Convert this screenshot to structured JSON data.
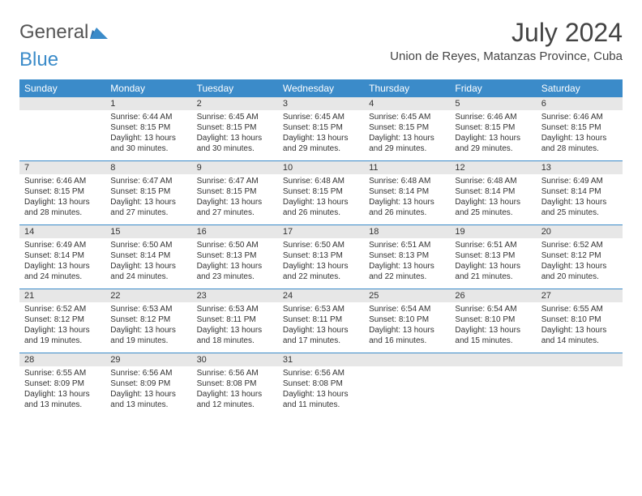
{
  "logo": {
    "text1": "General",
    "text2": "Blue",
    "color1": "#555555",
    "color2": "#3b8bc9"
  },
  "title": "July 2024",
  "subtitle": "Union de Reyes, Matanzas Province, Cuba",
  "header_bg": "#3b8bc9",
  "header_fg": "#ffffff",
  "daynum_bg": "#e7e7e7",
  "border_color": "#3b8bc9",
  "day_names": [
    "Sunday",
    "Monday",
    "Tuesday",
    "Wednesday",
    "Thursday",
    "Friday",
    "Saturday"
  ],
  "weeks": [
    {
      "nums": [
        "",
        "1",
        "2",
        "3",
        "4",
        "5",
        "6"
      ],
      "cells": [
        {
          "sunrise": "",
          "sunset": "",
          "daylight": ""
        },
        {
          "sunrise": "Sunrise: 6:44 AM",
          "sunset": "Sunset: 8:15 PM",
          "daylight": "Daylight: 13 hours and 30 minutes."
        },
        {
          "sunrise": "Sunrise: 6:45 AM",
          "sunset": "Sunset: 8:15 PM",
          "daylight": "Daylight: 13 hours and 30 minutes."
        },
        {
          "sunrise": "Sunrise: 6:45 AM",
          "sunset": "Sunset: 8:15 PM",
          "daylight": "Daylight: 13 hours and 29 minutes."
        },
        {
          "sunrise": "Sunrise: 6:45 AM",
          "sunset": "Sunset: 8:15 PM",
          "daylight": "Daylight: 13 hours and 29 minutes."
        },
        {
          "sunrise": "Sunrise: 6:46 AM",
          "sunset": "Sunset: 8:15 PM",
          "daylight": "Daylight: 13 hours and 29 minutes."
        },
        {
          "sunrise": "Sunrise: 6:46 AM",
          "sunset": "Sunset: 8:15 PM",
          "daylight": "Daylight: 13 hours and 28 minutes."
        }
      ]
    },
    {
      "nums": [
        "7",
        "8",
        "9",
        "10",
        "11",
        "12",
        "13"
      ],
      "cells": [
        {
          "sunrise": "Sunrise: 6:46 AM",
          "sunset": "Sunset: 8:15 PM",
          "daylight": "Daylight: 13 hours and 28 minutes."
        },
        {
          "sunrise": "Sunrise: 6:47 AM",
          "sunset": "Sunset: 8:15 PM",
          "daylight": "Daylight: 13 hours and 27 minutes."
        },
        {
          "sunrise": "Sunrise: 6:47 AM",
          "sunset": "Sunset: 8:15 PM",
          "daylight": "Daylight: 13 hours and 27 minutes."
        },
        {
          "sunrise": "Sunrise: 6:48 AM",
          "sunset": "Sunset: 8:15 PM",
          "daylight": "Daylight: 13 hours and 26 minutes."
        },
        {
          "sunrise": "Sunrise: 6:48 AM",
          "sunset": "Sunset: 8:14 PM",
          "daylight": "Daylight: 13 hours and 26 minutes."
        },
        {
          "sunrise": "Sunrise: 6:48 AM",
          "sunset": "Sunset: 8:14 PM",
          "daylight": "Daylight: 13 hours and 25 minutes."
        },
        {
          "sunrise": "Sunrise: 6:49 AM",
          "sunset": "Sunset: 8:14 PM",
          "daylight": "Daylight: 13 hours and 25 minutes."
        }
      ]
    },
    {
      "nums": [
        "14",
        "15",
        "16",
        "17",
        "18",
        "19",
        "20"
      ],
      "cells": [
        {
          "sunrise": "Sunrise: 6:49 AM",
          "sunset": "Sunset: 8:14 PM",
          "daylight": "Daylight: 13 hours and 24 minutes."
        },
        {
          "sunrise": "Sunrise: 6:50 AM",
          "sunset": "Sunset: 8:14 PM",
          "daylight": "Daylight: 13 hours and 24 minutes."
        },
        {
          "sunrise": "Sunrise: 6:50 AM",
          "sunset": "Sunset: 8:13 PM",
          "daylight": "Daylight: 13 hours and 23 minutes."
        },
        {
          "sunrise": "Sunrise: 6:50 AM",
          "sunset": "Sunset: 8:13 PM",
          "daylight": "Daylight: 13 hours and 22 minutes."
        },
        {
          "sunrise": "Sunrise: 6:51 AM",
          "sunset": "Sunset: 8:13 PM",
          "daylight": "Daylight: 13 hours and 22 minutes."
        },
        {
          "sunrise": "Sunrise: 6:51 AM",
          "sunset": "Sunset: 8:13 PM",
          "daylight": "Daylight: 13 hours and 21 minutes."
        },
        {
          "sunrise": "Sunrise: 6:52 AM",
          "sunset": "Sunset: 8:12 PM",
          "daylight": "Daylight: 13 hours and 20 minutes."
        }
      ]
    },
    {
      "nums": [
        "21",
        "22",
        "23",
        "24",
        "25",
        "26",
        "27"
      ],
      "cells": [
        {
          "sunrise": "Sunrise: 6:52 AM",
          "sunset": "Sunset: 8:12 PM",
          "daylight": "Daylight: 13 hours and 19 minutes."
        },
        {
          "sunrise": "Sunrise: 6:53 AM",
          "sunset": "Sunset: 8:12 PM",
          "daylight": "Daylight: 13 hours and 19 minutes."
        },
        {
          "sunrise": "Sunrise: 6:53 AM",
          "sunset": "Sunset: 8:11 PM",
          "daylight": "Daylight: 13 hours and 18 minutes."
        },
        {
          "sunrise": "Sunrise: 6:53 AM",
          "sunset": "Sunset: 8:11 PM",
          "daylight": "Daylight: 13 hours and 17 minutes."
        },
        {
          "sunrise": "Sunrise: 6:54 AM",
          "sunset": "Sunset: 8:10 PM",
          "daylight": "Daylight: 13 hours and 16 minutes."
        },
        {
          "sunrise": "Sunrise: 6:54 AM",
          "sunset": "Sunset: 8:10 PM",
          "daylight": "Daylight: 13 hours and 15 minutes."
        },
        {
          "sunrise": "Sunrise: 6:55 AM",
          "sunset": "Sunset: 8:10 PM",
          "daylight": "Daylight: 13 hours and 14 minutes."
        }
      ]
    },
    {
      "nums": [
        "28",
        "29",
        "30",
        "31",
        "",
        "",
        ""
      ],
      "cells": [
        {
          "sunrise": "Sunrise: 6:55 AM",
          "sunset": "Sunset: 8:09 PM",
          "daylight": "Daylight: 13 hours and 13 minutes."
        },
        {
          "sunrise": "Sunrise: 6:56 AM",
          "sunset": "Sunset: 8:09 PM",
          "daylight": "Daylight: 13 hours and 13 minutes."
        },
        {
          "sunrise": "Sunrise: 6:56 AM",
          "sunset": "Sunset: 8:08 PM",
          "daylight": "Daylight: 13 hours and 12 minutes."
        },
        {
          "sunrise": "Sunrise: 6:56 AM",
          "sunset": "Sunset: 8:08 PM",
          "daylight": "Daylight: 13 hours and 11 minutes."
        },
        {
          "sunrise": "",
          "sunset": "",
          "daylight": ""
        },
        {
          "sunrise": "",
          "sunset": "",
          "daylight": ""
        },
        {
          "sunrise": "",
          "sunset": "",
          "daylight": ""
        }
      ]
    }
  ]
}
